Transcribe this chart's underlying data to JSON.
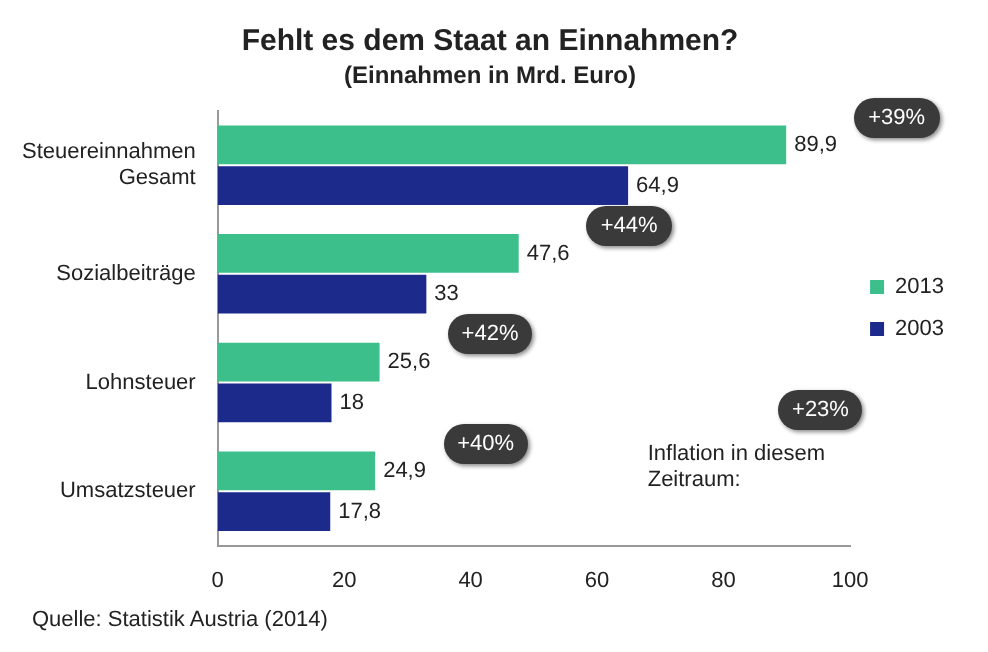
{
  "chart_data": {
    "type": "bar",
    "orientation": "horizontal",
    "title": "Fehlt es dem Staat an Einnahmen?",
    "subtitle": "(Einnahmen in Mrd. Euro)",
    "categories": [
      "Steuereinnahmen\nGesamt",
      "Sozialbeiträge",
      "Lohnsteuer",
      "Umsatzsteuer"
    ],
    "series": [
      {
        "name": "2013",
        "color": "#3dbf8c",
        "values": [
          89.9,
          47.6,
          25.6,
          24.9
        ],
        "value_labels": [
          "89,9",
          "47,6",
          "25,6",
          "24,9"
        ]
      },
      {
        "name": "2003",
        "color": "#1c2a8c",
        "values": [
          64.9,
          33,
          18,
          17.8
        ],
        "value_labels": [
          "64,9",
          "33",
          "18",
          "17,8"
        ]
      }
    ],
    "xlim": [
      0,
      100
    ],
    "xticks": [
      0,
      20,
      40,
      60,
      80,
      100
    ],
    "legend": "right",
    "grid": false,
    "annotations": [
      "+39%",
      "+44%",
      "+42%",
      "+40%",
      "Inflation in diesem Zeitraum:",
      "+23%",
      "Quelle: Statistik Austria (2014)"
    ]
  }
}
